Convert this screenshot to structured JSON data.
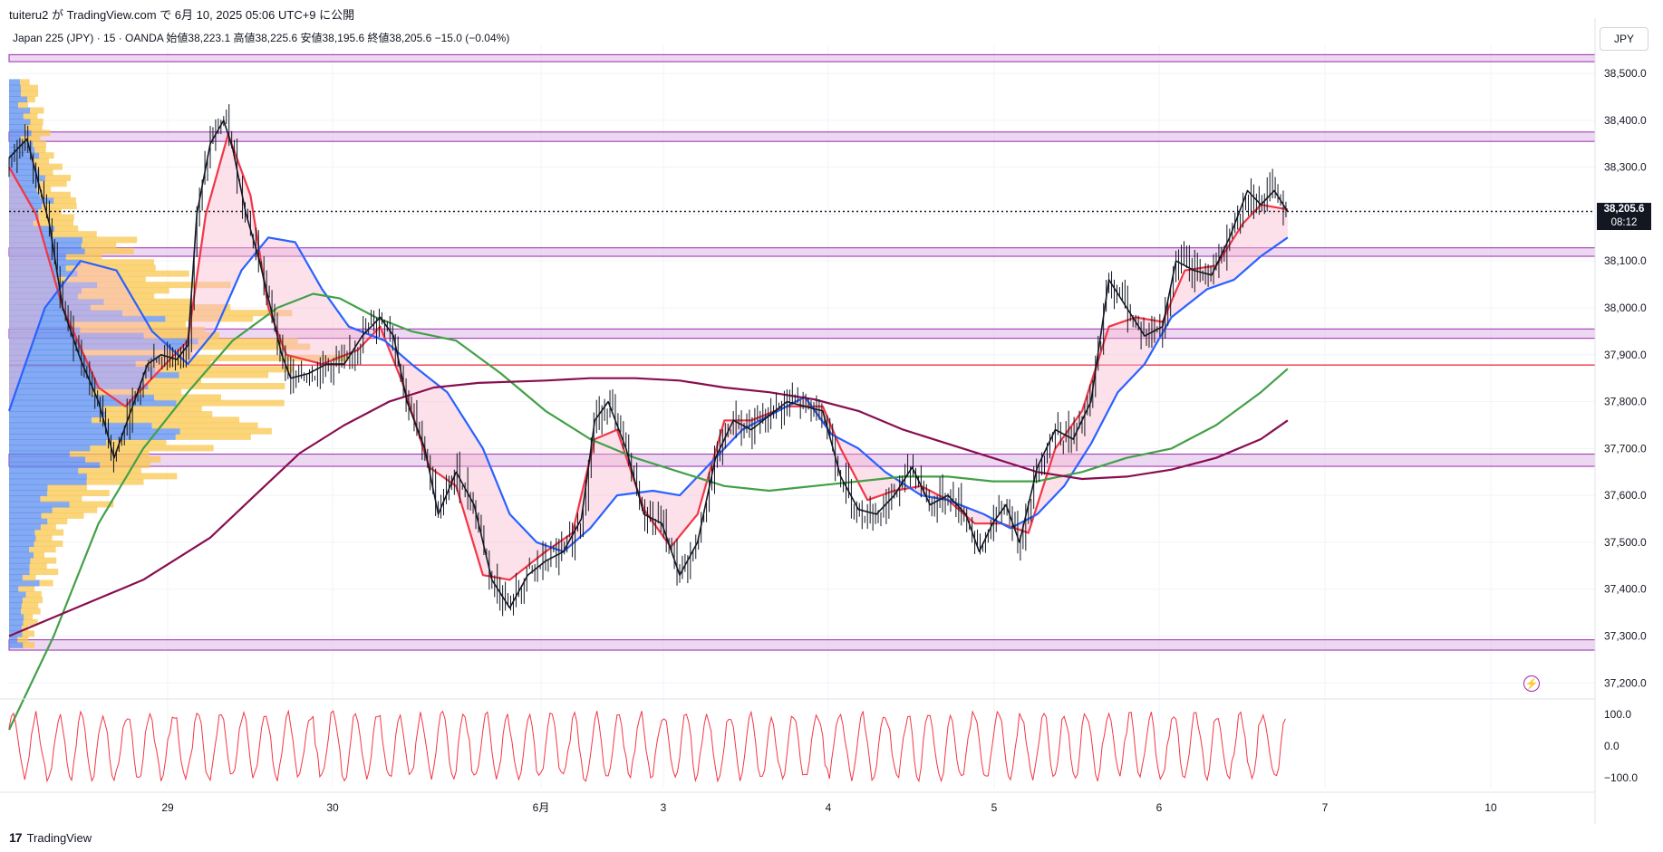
{
  "caption": "tuiteru2 が TradingView.com で 6月 10, 2025 05:06 UTC+9 に公開",
  "legend": "Japan 225 (JPY) · 15 · OANDA  始値38,223.1  高値38,225.6  安値38,195.6  終値38,205.6  −15.0 (−0.04%)",
  "currency": "JPY",
  "last_price_label": "38,205.6",
  "countdown_label": "08:12",
  "footer_brand": "TradingView",
  "alert_icon": "lightning-alert-icon",
  "colors": {
    "candle": "#131722",
    "fast_ma": "#f23645",
    "mid_ma": "#2962ff",
    "green_ma": "#43a047",
    "slow_ma": "#880e4f",
    "zone_fill": "#e1bee7",
    "zone_border": "#9c27b0",
    "hline": "#f23645",
    "vp_up": "#f9c74f",
    "vp_down": "#5b8def",
    "oscillator": "#f23645"
  },
  "chart_data": {
    "type": "line",
    "title": "Japan 225 (JPY) · 15 · OANDA",
    "x_axis_labels": [
      "29",
      "30",
      "6月",
      "3",
      "4",
      "5",
      "6",
      "7",
      "10"
    ],
    "y_axis_ticks": [
      "38,500.0",
      "38,400.0",
      "38,300.0",
      "38,200.0",
      "38,100.0",
      "38,000.0",
      "37,900.0",
      "37,800.0",
      "37,700.0",
      "37,600.0",
      "37,500.0",
      "37,400.0",
      "37,300.0",
      "37,200.0"
    ],
    "ylim": [
      37160,
      38560
    ],
    "last_price": 38205.6,
    "horizontal_line": 37878,
    "zones": [
      [
        38525,
        38540
      ],
      [
        38355,
        38375
      ],
      [
        38110,
        38128
      ],
      [
        37935,
        37955
      ],
      [
        37662,
        37688
      ],
      [
        37270,
        37292
      ]
    ],
    "price_path": [
      [
        0.0,
        38320
      ],
      [
        0.4,
        38360
      ],
      [
        0.9,
        38180
      ],
      [
        1.2,
        38000
      ],
      [
        1.6,
        37890
      ],
      [
        2.0,
        37800
      ],
      [
        2.35,
        37680
      ],
      [
        2.8,
        37800
      ],
      [
        3.1,
        37880
      ],
      [
        3.4,
        37900
      ],
      [
        3.75,
        37890
      ],
      [
        4.0,
        37920
      ],
      [
        4.2,
        38200
      ],
      [
        4.5,
        38350
      ],
      [
        4.8,
        38400
      ],
      [
        5.0,
        38340
      ],
      [
        5.3,
        38200
      ],
      [
        5.6,
        38100
      ],
      [
        5.9,
        37980
      ],
      [
        6.1,
        37900
      ],
      [
        6.3,
        37850
      ],
      [
        6.7,
        37860
      ],
      [
        7.1,
        37880
      ],
      [
        7.5,
        37880
      ],
      [
        7.9,
        37940
      ],
      [
        8.3,
        37980
      ],
      [
        8.6,
        37940
      ],
      [
        8.9,
        37800
      ],
      [
        9.3,
        37700
      ],
      [
        9.6,
        37560
      ],
      [
        10.0,
        37650
      ],
      [
        10.4,
        37580
      ],
      [
        10.8,
        37420
      ],
      [
        11.2,
        37360
      ],
      [
        11.6,
        37430
      ],
      [
        12.0,
        37460
      ],
      [
        12.4,
        37480
      ],
      [
        12.8,
        37550
      ],
      [
        13.1,
        37760
      ],
      [
        13.4,
        37800
      ],
      [
        13.8,
        37700
      ],
      [
        14.2,
        37560
      ],
      [
        14.6,
        37540
      ],
      [
        15.0,
        37430
      ],
      [
        15.4,
        37500
      ],
      [
        15.8,
        37680
      ],
      [
        16.2,
        37760
      ],
      [
        16.6,
        37740
      ],
      [
        17.0,
        37770
      ],
      [
        17.4,
        37800
      ],
      [
        17.8,
        37790
      ],
      [
        18.2,
        37780
      ],
      [
        18.6,
        37640
      ],
      [
        19.0,
        37570
      ],
      [
        19.4,
        37560
      ],
      [
        19.8,
        37600
      ],
      [
        20.2,
        37660
      ],
      [
        20.6,
        37580
      ],
      [
        21.0,
        37600
      ],
      [
        21.4,
        37560
      ],
      [
        21.7,
        37480
      ],
      [
        22.0,
        37540
      ],
      [
        22.3,
        37580
      ],
      [
        22.6,
        37500
      ],
      [
        23.0,
        37660
      ],
      [
        23.4,
        37740
      ],
      [
        23.8,
        37720
      ],
      [
        24.2,
        37800
      ],
      [
        24.6,
        38060
      ],
      [
        25.0,
        38000
      ],
      [
        25.4,
        37940
      ],
      [
        25.8,
        37960
      ],
      [
        26.1,
        38100
      ],
      [
        26.5,
        38080
      ],
      [
        26.9,
        38070
      ],
      [
        27.3,
        38150
      ],
      [
        27.7,
        38250
      ],
      [
        28.0,
        38220
      ],
      [
        28.3,
        38250
      ],
      [
        28.6,
        38205
      ]
    ],
    "series": [
      {
        "name": "",
        "values_path": [
          [
            0.0,
            38300
          ],
          [
            0.6,
            38200
          ],
          [
            1.2,
            38000
          ],
          [
            2.0,
            37830
          ],
          [
            2.6,
            37790
          ],
          [
            3.3,
            37860
          ],
          [
            4.0,
            37930
          ],
          [
            4.4,
            38200
          ],
          [
            4.9,
            38370
          ],
          [
            5.4,
            38240
          ],
          [
            5.8,
            38000
          ],
          [
            6.2,
            37900
          ],
          [
            7.0,
            37880
          ],
          [
            7.8,
            37910
          ],
          [
            8.3,
            37960
          ],
          [
            8.8,
            37840
          ],
          [
            9.4,
            37660
          ],
          [
            10.0,
            37620
          ],
          [
            10.6,
            37430
          ],
          [
            11.2,
            37420
          ],
          [
            12.0,
            37480
          ],
          [
            12.6,
            37520
          ],
          [
            13.1,
            37720
          ],
          [
            13.6,
            37740
          ],
          [
            14.2,
            37570
          ],
          [
            14.8,
            37490
          ],
          [
            15.4,
            37560
          ],
          [
            16.0,
            37760
          ],
          [
            16.6,
            37760
          ],
          [
            17.4,
            37790
          ],
          [
            18.2,
            37790
          ],
          [
            18.6,
            37700
          ],
          [
            19.2,
            37590
          ],
          [
            19.8,
            37610
          ],
          [
            20.4,
            37620
          ],
          [
            21.0,
            37590
          ],
          [
            21.6,
            37540
          ],
          [
            22.2,
            37540
          ],
          [
            22.8,
            37520
          ],
          [
            23.4,
            37700
          ],
          [
            24.0,
            37780
          ],
          [
            24.6,
            37960
          ],
          [
            25.2,
            37980
          ],
          [
            25.8,
            37970
          ],
          [
            26.3,
            38080
          ],
          [
            27.0,
            38090
          ],
          [
            27.6,
            38180
          ],
          [
            28.0,
            38220
          ],
          [
            28.6,
            38210
          ]
        ]
      },
      {
        "name": "",
        "values_path": [
          [
            0.0,
            37780
          ],
          [
            0.8,
            38000
          ],
          [
            1.6,
            38100
          ],
          [
            2.4,
            38080
          ],
          [
            3.2,
            37950
          ],
          [
            4.0,
            37880
          ],
          [
            4.6,
            37950
          ],
          [
            5.2,
            38080
          ],
          [
            5.8,
            38150
          ],
          [
            6.4,
            38140
          ],
          [
            7.0,
            38040
          ],
          [
            7.6,
            37960
          ],
          [
            8.4,
            37930
          ],
          [
            9.0,
            37880
          ],
          [
            9.8,
            37820
          ],
          [
            10.6,
            37700
          ],
          [
            11.2,
            37560
          ],
          [
            11.8,
            37500
          ],
          [
            12.4,
            37480
          ],
          [
            13.0,
            37530
          ],
          [
            13.6,
            37600
          ],
          [
            14.4,
            37610
          ],
          [
            15.0,
            37600
          ],
          [
            15.6,
            37660
          ],
          [
            16.4,
            37740
          ],
          [
            17.2,
            37780
          ],
          [
            17.8,
            37810
          ],
          [
            18.4,
            37730
          ],
          [
            19.0,
            37700
          ],
          [
            19.6,
            37650
          ],
          [
            20.4,
            37600
          ],
          [
            21.0,
            37590
          ],
          [
            21.8,
            37560
          ],
          [
            22.4,
            37530
          ],
          [
            23.0,
            37560
          ],
          [
            23.6,
            37620
          ],
          [
            24.2,
            37710
          ],
          [
            24.8,
            37820
          ],
          [
            25.4,
            37880
          ],
          [
            26.0,
            37980
          ],
          [
            26.8,
            38040
          ],
          [
            27.4,
            38060
          ],
          [
            28.0,
            38110
          ],
          [
            28.6,
            38150
          ]
        ]
      },
      {
        "name": "",
        "values_path": [
          [
            0.0,
            37100
          ],
          [
            1.0,
            37300
          ],
          [
            2.0,
            37540
          ],
          [
            3.0,
            37700
          ],
          [
            4.0,
            37820
          ],
          [
            5.0,
            37930
          ],
          [
            6.0,
            38000
          ],
          [
            6.8,
            38030
          ],
          [
            7.4,
            38020
          ],
          [
            8.2,
            37980
          ],
          [
            9.0,
            37950
          ],
          [
            10.0,
            37930
          ],
          [
            11.0,
            37860
          ],
          [
            12.0,
            37780
          ],
          [
            13.0,
            37720
          ],
          [
            14.0,
            37680
          ],
          [
            15.0,
            37650
          ],
          [
            16.0,
            37620
          ],
          [
            17.0,
            37610
          ],
          [
            18.0,
            37620
          ],
          [
            19.0,
            37630
          ],
          [
            20.0,
            37640
          ],
          [
            21.0,
            37640
          ],
          [
            22.0,
            37630
          ],
          [
            23.0,
            37630
          ],
          [
            24.0,
            37650
          ],
          [
            25.0,
            37680
          ],
          [
            26.0,
            37700
          ],
          [
            27.0,
            37750
          ],
          [
            28.0,
            37820
          ],
          [
            28.6,
            37870
          ]
        ]
      },
      {
        "name": "",
        "values_path": [
          [
            0.0,
            37300
          ],
          [
            1.5,
            37360
          ],
          [
            3.0,
            37420
          ],
          [
            4.5,
            37510
          ],
          [
            5.5,
            37600
          ],
          [
            6.5,
            37690
          ],
          [
            7.5,
            37750
          ],
          [
            8.5,
            37800
          ],
          [
            9.5,
            37830
          ],
          [
            10.5,
            37840
          ],
          [
            12.0,
            37845
          ],
          [
            13.0,
            37850
          ],
          [
            14.0,
            37850
          ],
          [
            15.0,
            37845
          ],
          [
            16.0,
            37830
          ],
          [
            17.0,
            37820
          ],
          [
            18.0,
            37805
          ],
          [
            19.0,
            37780
          ],
          [
            20.0,
            37740
          ],
          [
            21.0,
            37710
          ],
          [
            22.0,
            37680
          ],
          [
            23.0,
            37650
          ],
          [
            24.0,
            37635
          ],
          [
            25.0,
            37640
          ],
          [
            26.0,
            37655
          ],
          [
            27.0,
            37680
          ],
          [
            28.0,
            37720
          ],
          [
            28.6,
            37760
          ]
        ]
      }
    ],
    "oscillator": {
      "ticks": [
        "100.0",
        "0.0",
        "−100.0"
      ],
      "ylim": [
        -125,
        125
      ]
    }
  }
}
